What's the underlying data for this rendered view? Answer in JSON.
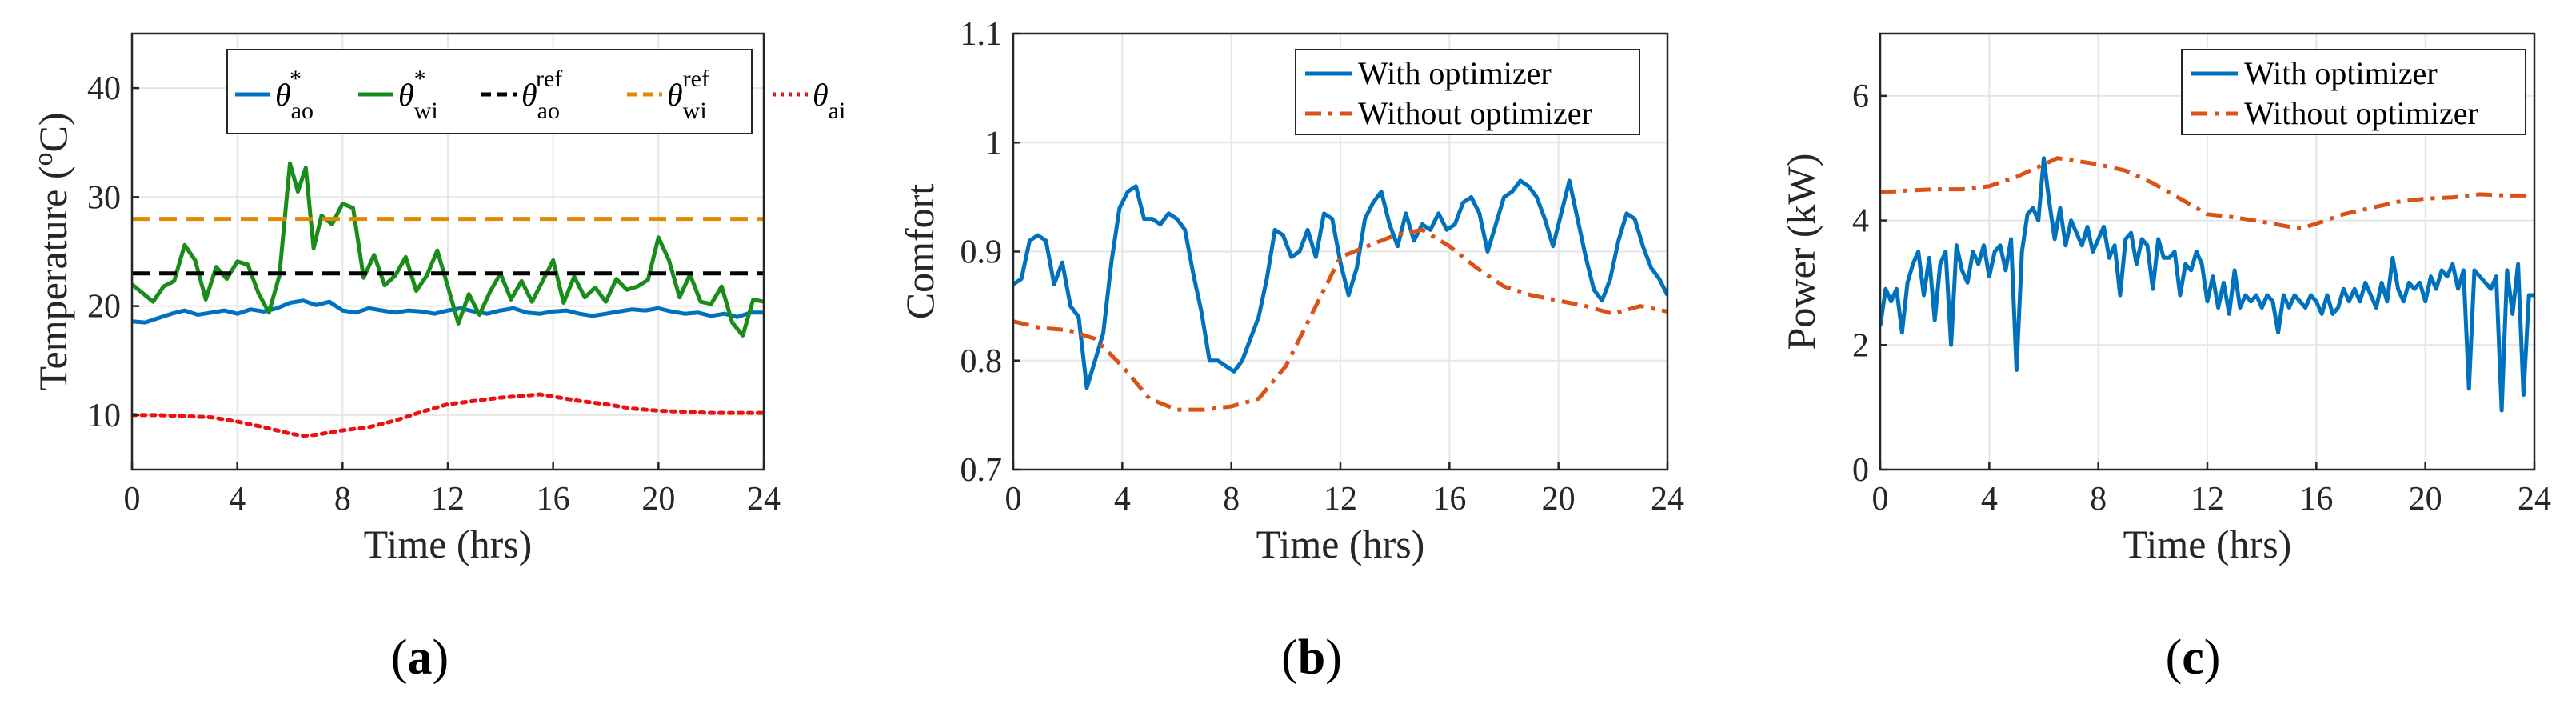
{
  "chart_data": [
    {
      "type": "line",
      "id": "a",
      "caption": "(a)",
      "xlabel": "Time (hrs)",
      "ylabel": "Temperature (oC)",
      "ylabel_parts": {
        "main": "Temperature (",
        "sup": "o",
        "tail": "C)"
      },
      "xlim": [
        0,
        24
      ],
      "ylim": [
        5,
        45
      ],
      "xticks": [
        0,
        4,
        8,
        12,
        16,
        20,
        24
      ],
      "yticks": [
        10,
        20,
        30,
        40
      ],
      "grid": true,
      "legend_position": "top-right-horizontal",
      "series": [
        {
          "name": "θao*",
          "label_base": "θ",
          "label_sup": "*",
          "label_sub": "ao",
          "color": "#0072BD",
          "style": "solid",
          "x": [
            0,
            0.5,
            1,
            1.5,
            2,
            2.5,
            3,
            3.5,
            4,
            4.5,
            5,
            5.5,
            6,
            6.5,
            7,
            7.5,
            8,
            8.5,
            9,
            9.5,
            10,
            10.5,
            11,
            11.5,
            12,
            12.5,
            13,
            13.5,
            14,
            14.5,
            15,
            15.5,
            16,
            16.5,
            17,
            17.5,
            18,
            18.5,
            19,
            19.5,
            20,
            20.5,
            21,
            21.5,
            22,
            22.5,
            23,
            23.5,
            24
          ],
          "y": [
            18.6,
            18.5,
            18.9,
            19.3,
            19.6,
            19.2,
            19.4,
            19.6,
            19.3,
            19.7,
            19.5,
            19.8,
            20.3,
            20.5,
            20.1,
            20.4,
            19.6,
            19.4,
            19.8,
            19.6,
            19.4,
            19.6,
            19.5,
            19.3,
            19.6,
            19.8,
            19.5,
            19.3,
            19.6,
            19.8,
            19.4,
            19.3,
            19.5,
            19.6,
            19.3,
            19.1,
            19.3,
            19.5,
            19.7,
            19.6,
            19.8,
            19.5,
            19.3,
            19.4,
            19.1,
            19.3,
            19.0,
            19.4,
            19.4
          ]
        },
        {
          "name": "θwi*",
          "label_base": "θ",
          "label_sup": "*",
          "label_sub": "wi",
          "color": "#1A8C1A",
          "style": "solid",
          "x": [
            0,
            0.4,
            0.8,
            1.2,
            1.6,
            2,
            2.4,
            2.8,
            3.2,
            3.6,
            4,
            4.4,
            4.8,
            5.2,
            5.6,
            6,
            6.3,
            6.6,
            6.9,
            7.2,
            7.6,
            8,
            8.4,
            8.8,
            9.2,
            9.6,
            10,
            10.4,
            10.8,
            11.2,
            11.6,
            12,
            12.4,
            12.8,
            13.2,
            13.6,
            14,
            14.4,
            14.8,
            15.2,
            15.6,
            16,
            16.4,
            16.8,
            17.2,
            17.6,
            18,
            18.4,
            18.8,
            19.2,
            19.6,
            20,
            20.4,
            20.8,
            21.2,
            21.6,
            22,
            22.4,
            22.8,
            23.2,
            23.6,
            24
          ],
          "y": [
            22,
            21.2,
            20.4,
            21.8,
            22.3,
            25.6,
            24.2,
            20.6,
            23.6,
            22.5,
            24.1,
            23.8,
            21.2,
            19.4,
            22.8,
            33.1,
            30.5,
            32.7,
            25.3,
            28.3,
            27.5,
            29.4,
            29,
            22.6,
            24.7,
            21.9,
            22.8,
            24.5,
            21.4,
            22.8,
            25.1,
            21.8,
            18.4,
            21.1,
            19.2,
            21.3,
            23,
            20.6,
            22.3,
            20.4,
            22.3,
            24.2,
            20.3,
            22.7,
            20.8,
            21.7,
            20.4,
            22.5,
            21.5,
            21.8,
            22.4,
            26.3,
            24.2,
            20.8,
            22.9,
            20.4,
            20.2,
            21.8,
            18.5,
            17.3,
            20.6,
            20.4
          ]
        },
        {
          "name": "θao ref",
          "label_base": "θ",
          "label_sup": "ref",
          "label_sub": "ao",
          "color": "#000000",
          "style": "dashed",
          "x": [
            0,
            24
          ],
          "y": [
            23,
            23
          ]
        },
        {
          "name": "θwi ref",
          "label_base": "θ",
          "label_sup": "ref",
          "label_sub": "wi",
          "color": "#E08A00",
          "style": "dashed",
          "x": [
            0,
            24
          ],
          "y": [
            28,
            28
          ]
        },
        {
          "name": "θai",
          "label_base": "θ",
          "label_sup": "",
          "label_sub": "ai",
          "color": "#EE1111",
          "style": "dotted",
          "x": [
            0,
            1,
            2,
            3,
            4,
            5,
            6,
            6.5,
            7,
            8,
            9,
            10,
            11,
            12,
            13,
            14,
            15,
            15.5,
            16,
            17,
            18,
            19,
            20,
            21,
            22,
            23,
            24
          ],
          "y": [
            10,
            10,
            9.9,
            9.8,
            9.4,
            8.9,
            8.3,
            8.1,
            8.2,
            8.6,
            8.9,
            9.5,
            10.3,
            11,
            11.3,
            11.6,
            11.8,
            11.9,
            11.7,
            11.3,
            11,
            10.6,
            10.4,
            10.3,
            10.2,
            10.2,
            10.2
          ]
        }
      ]
    },
    {
      "type": "line",
      "id": "b",
      "caption": "(b)",
      "xlabel": "Time (hrs)",
      "ylabel": "Comfort",
      "xlim": [
        0,
        24
      ],
      "ylim": [
        0.7,
        1.1
      ],
      "xticks": [
        0,
        4,
        8,
        12,
        16,
        20,
        24
      ],
      "yticks": [
        0.7,
        0.8,
        0.9,
        1,
        1.1
      ],
      "ytick_labels": [
        "0.7",
        "0.8",
        "0.9",
        "1",
        "1.1"
      ],
      "grid": true,
      "legend_position": "top-right",
      "series": [
        {
          "name": "With optimizer",
          "color": "#0072BD",
          "style": "solid",
          "x": [
            0,
            0.3,
            0.6,
            0.9,
            1.2,
            1.5,
            1.8,
            2.1,
            2.4,
            2.7,
            3.0,
            3.3,
            3.6,
            3.9,
            4.2,
            4.5,
            4.8,
            5.1,
            5.4,
            5.7,
            6.0,
            6.3,
            6.6,
            6.9,
            7.2,
            7.5,
            7.8,
            8.1,
            8.4,
            8.7,
            9.0,
            9.3,
            9.6,
            9.9,
            10.2,
            10.5,
            10.8,
            11.1,
            11.4,
            11.7,
            12.0,
            12.3,
            12.6,
            12.9,
            13.2,
            13.5,
            13.8,
            14.1,
            14.4,
            14.7,
            15.0,
            15.3,
            15.6,
            15.9,
            16.2,
            16.5,
            16.8,
            17.1,
            17.4,
            17.7,
            18.0,
            18.3,
            18.6,
            18.9,
            19.2,
            19.5,
            19.8,
            20.1,
            20.4,
            20.7,
            21.0,
            21.3,
            21.6,
            21.9,
            22.2,
            22.5,
            22.8,
            23.1,
            23.4,
            23.7,
            24
          ],
          "y": [
            0.87,
            0.875,
            0.91,
            0.915,
            0.91,
            0.87,
            0.89,
            0.85,
            0.84,
            0.775,
            0.8,
            0.825,
            0.89,
            0.94,
            0.955,
            0.96,
            0.93,
            0.93,
            0.925,
            0.935,
            0.93,
            0.92,
            0.88,
            0.845,
            0.8,
            0.8,
            0.795,
            0.79,
            0.8,
            0.82,
            0.84,
            0.875,
            0.92,
            0.915,
            0.895,
            0.9,
            0.92,
            0.895,
            0.935,
            0.93,
            0.89,
            0.86,
            0.885,
            0.93,
            0.945,
            0.955,
            0.925,
            0.905,
            0.935,
            0.91,
            0.925,
            0.92,
            0.935,
            0.92,
            0.925,
            0.945,
            0.95,
            0.935,
            0.9,
            0.925,
            0.95,
            0.955,
            0.965,
            0.96,
            0.95,
            0.93,
            0.905,
            0.935,
            0.965,
            0.93,
            0.895,
            0.865,
            0.855,
            0.875,
            0.91,
            0.935,
            0.93,
            0.905,
            0.885,
            0.875,
            0.86
          ]
        },
        {
          "name": "Without optimizer",
          "color": "#D95319",
          "style": "dashdot",
          "x": [
            0,
            1,
            2,
            3,
            4,
            5,
            6,
            7,
            8,
            9,
            10,
            11,
            12,
            13,
            14,
            15,
            16,
            17,
            18,
            19,
            20,
            21,
            22,
            23,
            24
          ],
          "y": [
            0.836,
            0.83,
            0.828,
            0.82,
            0.795,
            0.765,
            0.755,
            0.755,
            0.758,
            0.765,
            0.795,
            0.845,
            0.895,
            0.905,
            0.915,
            0.92,
            0.905,
            0.885,
            0.868,
            0.86,
            0.855,
            0.85,
            0.843,
            0.85,
            0.845
          ]
        }
      ]
    },
    {
      "type": "line",
      "id": "c",
      "caption": "(c)",
      "xlabel": "Time (hrs)",
      "ylabel": "Power (kW)",
      "xlim": [
        0,
        24
      ],
      "ylim": [
        0,
        7
      ],
      "xticks": [
        0,
        4,
        8,
        12,
        16,
        20,
        24
      ],
      "yticks": [
        0,
        2,
        4,
        6
      ],
      "grid": true,
      "legend_position": "top-right",
      "series": [
        {
          "name": "With optimizer",
          "color": "#0072BD",
          "style": "solid",
          "x": [
            0,
            0.2,
            0.4,
            0.6,
            0.8,
            1.0,
            1.2,
            1.4,
            1.6,
            1.8,
            2.0,
            2.2,
            2.4,
            2.6,
            2.8,
            3.0,
            3.2,
            3.4,
            3.6,
            3.8,
            4.0,
            4.2,
            4.4,
            4.6,
            4.8,
            5.0,
            5.2,
            5.4,
            5.6,
            5.8,
            6.0,
            6.2,
            6.4,
            6.6,
            6.8,
            7.0,
            7.2,
            7.4,
            7.6,
            7.8,
            8.0,
            8.2,
            8.4,
            8.6,
            8.8,
            9.0,
            9.2,
            9.4,
            9.6,
            9.8,
            10.0,
            10.2,
            10.4,
            10.6,
            10.8,
            11.0,
            11.2,
            11.4,
            11.6,
            11.8,
            12.0,
            12.2,
            12.4,
            12.6,
            12.8,
            13.0,
            13.2,
            13.4,
            13.6,
            13.8,
            14.0,
            14.2,
            14.4,
            14.6,
            14.8,
            15.0,
            15.2,
            15.4,
            15.6,
            15.8,
            16.0,
            16.2,
            16.4,
            16.6,
            16.8,
            17.0,
            17.2,
            17.4,
            17.6,
            17.8,
            18.0,
            18.2,
            18.4,
            18.6,
            18.8,
            19.0,
            19.2,
            19.4,
            19.6,
            19.8,
            20.0,
            20.2,
            20.4,
            20.6,
            20.8,
            21.0,
            21.2,
            21.4,
            21.6,
            21.8,
            22.0,
            22.2,
            22.4,
            22.6,
            22.8,
            23.0,
            23.2,
            23.4,
            23.6,
            23.8,
            24.0
          ],
          "y": [
            2.3,
            2.9,
            2.7,
            2.9,
            2.2,
            3.0,
            3.3,
            3.5,
            2.8,
            3.4,
            2.4,
            3.3,
            3.5,
            2.0,
            3.6,
            3.2,
            3.0,
            3.5,
            3.3,
            3.6,
            3.1,
            3.5,
            3.6,
            3.2,
            3.7,
            1.6,
            3.5,
            4.1,
            4.2,
            4.0,
            5.0,
            4.3,
            3.7,
            4.2,
            3.6,
            4.0,
            3.8,
            3.6,
            3.9,
            3.5,
            3.7,
            3.9,
            3.4,
            3.6,
            2.8,
            3.7,
            3.8,
            3.3,
            3.7,
            3.6,
            2.9,
            3.7,
            3.4,
            3.4,
            3.5,
            2.8,
            3.3,
            3.2,
            3.5,
            3.3,
            2.7,
            3.1,
            2.6,
            3.0,
            2.5,
            3.2,
            2.6,
            2.8,
            2.7,
            2.8,
            2.6,
            2.8,
            2.7,
            2.2,
            2.8,
            2.6,
            2.8,
            2.7,
            2.6,
            2.8,
            2.7,
            2.5,
            2.8,
            2.5,
            2.6,
            2.9,
            2.7,
            2.9,
            2.7,
            3.0,
            2.8,
            2.6,
            3.0,
            2.7,
            3.4,
            2.9,
            2.7,
            3.0,
            2.9,
            3.0,
            2.7,
            3.1,
            2.9,
            3.2,
            3.1,
            3.3,
            2.9,
            3.2,
            1.3,
            3.2,
            3.1,
            3.0,
            2.9,
            3.1,
            0.95,
            3.2,
            2.5,
            3.3,
            1.2,
            2.8,
            2.8
          ]
        },
        {
          "name": "Without optimizer",
          "color": "#D95319",
          "style": "dashdot",
          "x": [
            0,
            1,
            2,
            3,
            4,
            5,
            6,
            6.5,
            7,
            8,
            9,
            10,
            11,
            12,
            13,
            14,
            15,
            15.5,
            16,
            17,
            18,
            19,
            20,
            21,
            22,
            23,
            24
          ],
          "y": [
            4.45,
            4.48,
            4.5,
            4.5,
            4.55,
            4.7,
            4.9,
            5.0,
            4.97,
            4.9,
            4.8,
            4.6,
            4.35,
            4.1,
            4.05,
            3.98,
            3.9,
            3.88,
            3.95,
            4.1,
            4.2,
            4.3,
            4.35,
            4.37,
            4.42,
            4.4,
            4.4
          ]
        }
      ]
    }
  ]
}
